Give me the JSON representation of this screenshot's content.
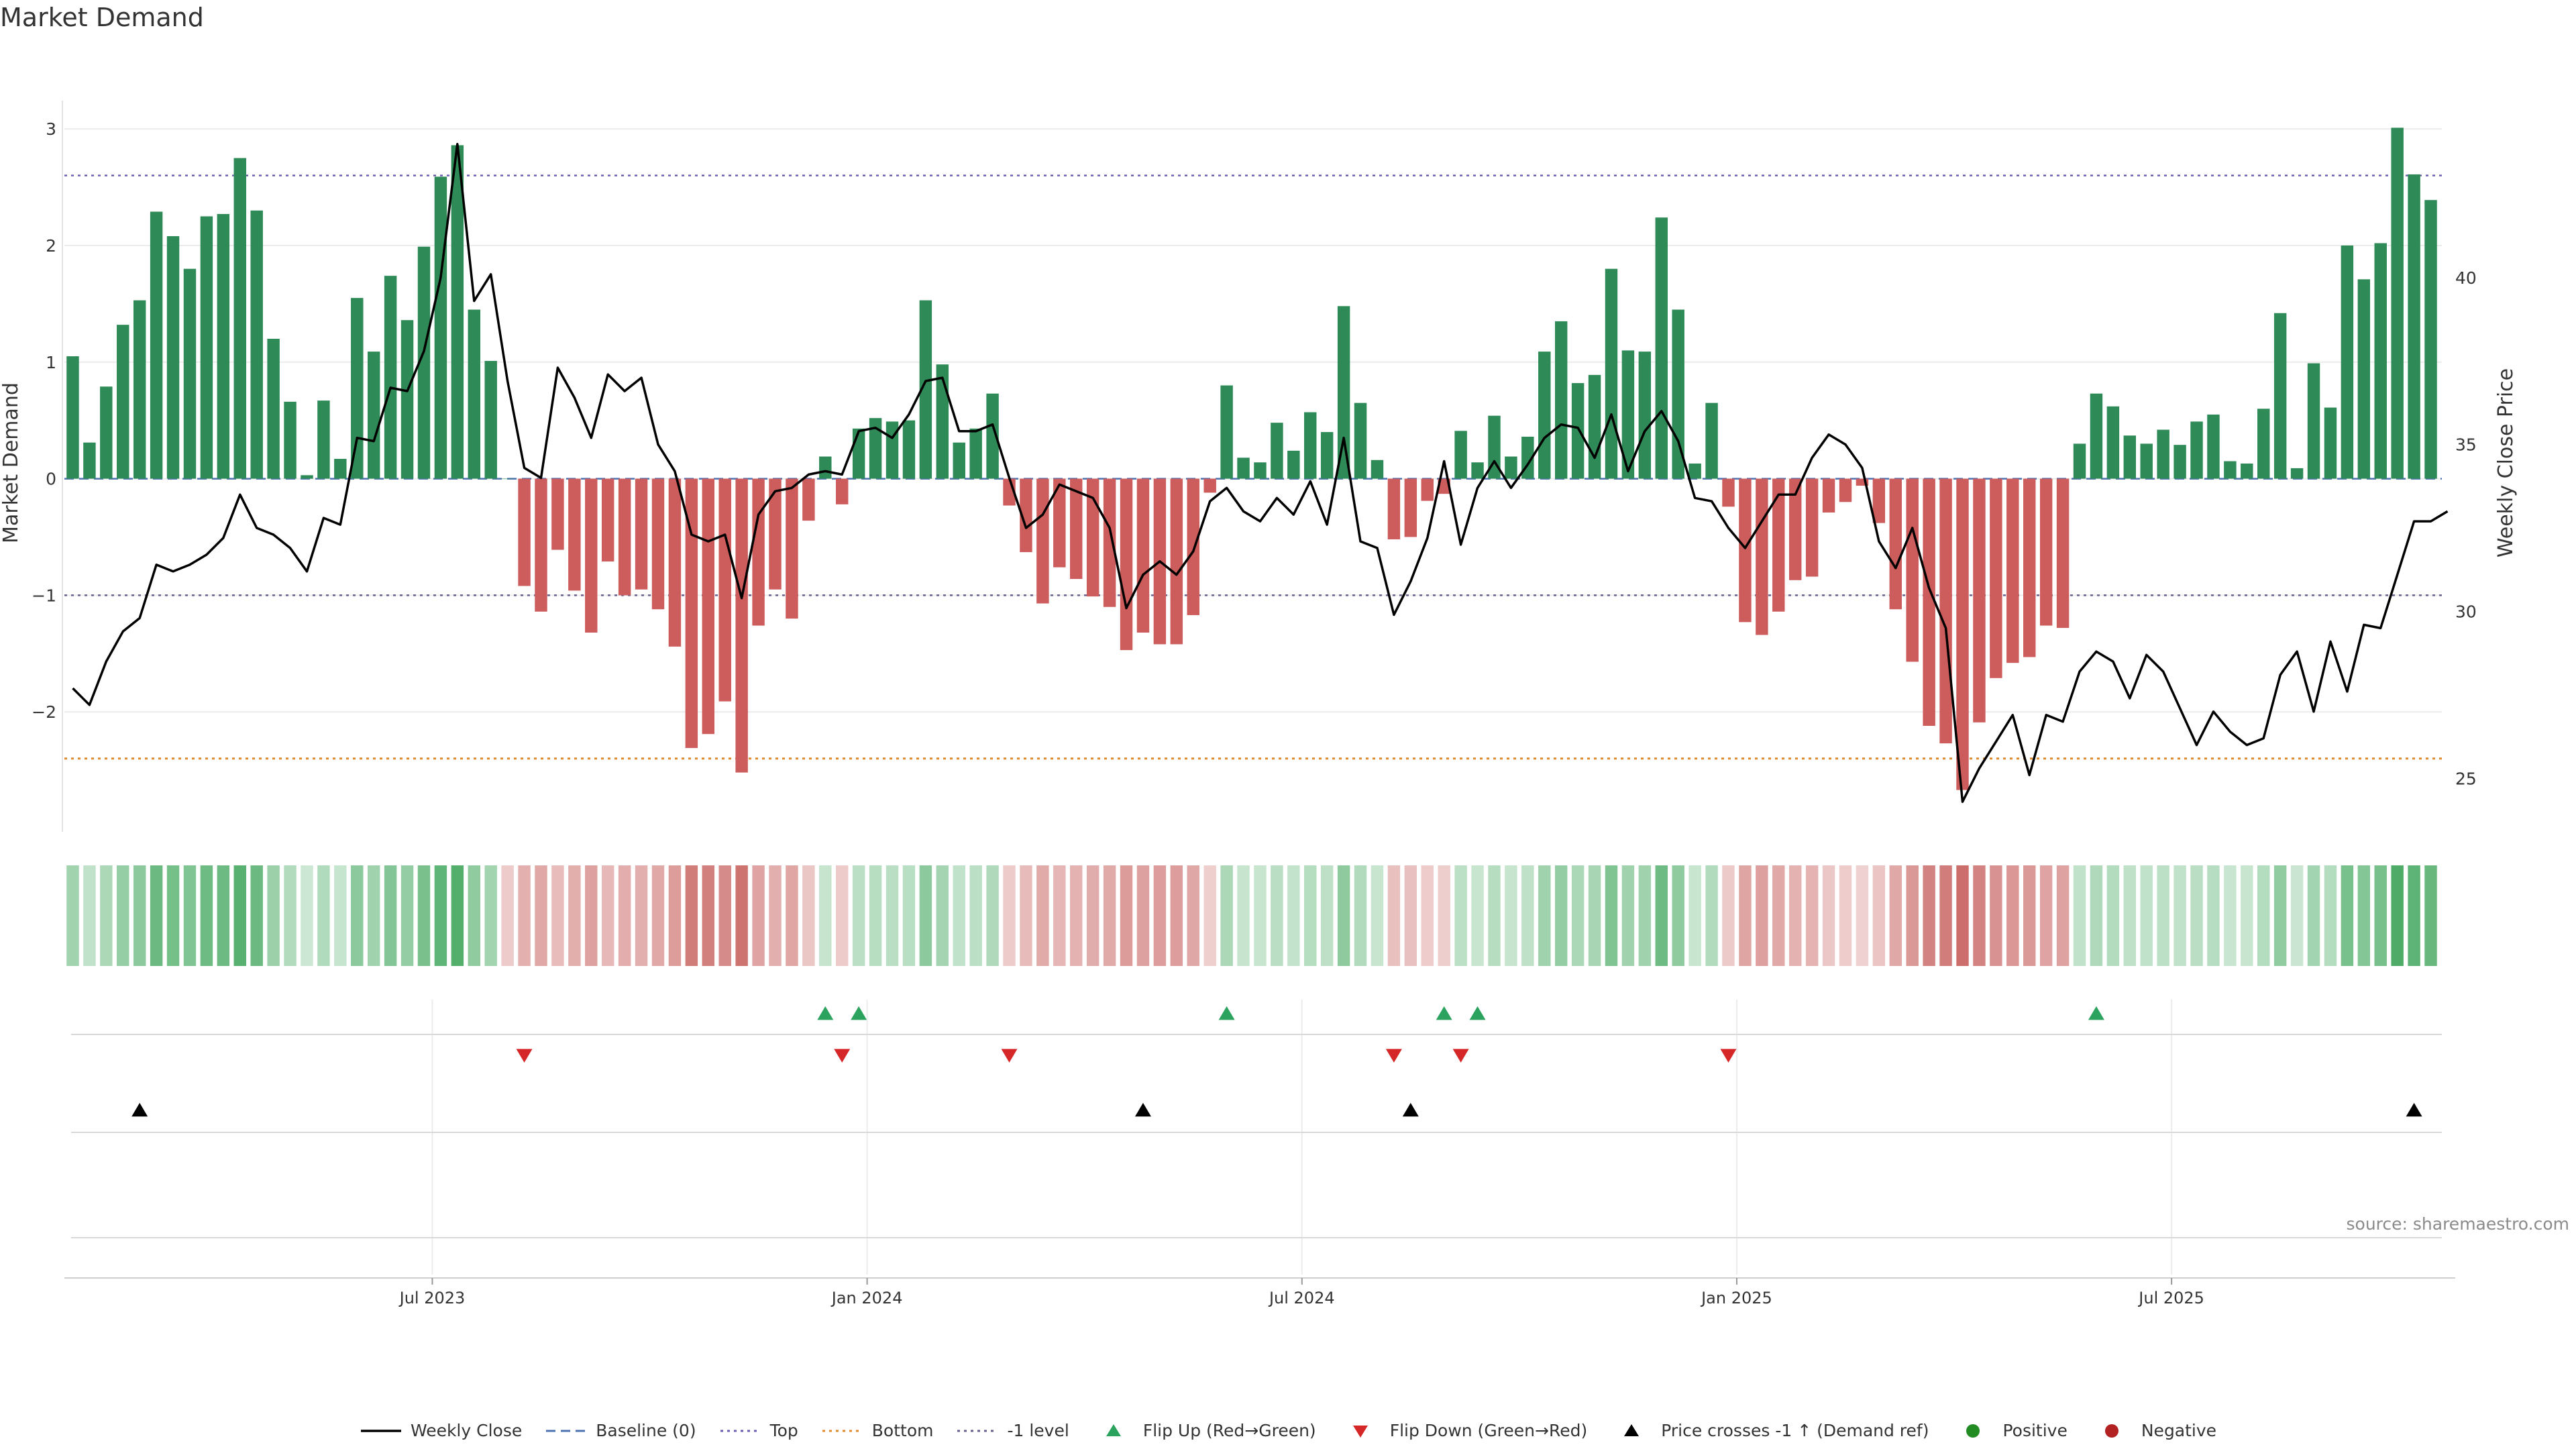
{
  "chart_data": {
    "type": "bar",
    "title": "Market Demand",
    "ylabel": "Market Demand",
    "y2label": "Weekly Close Price",
    "ylim": [
      -3.0,
      3.3
    ],
    "y2lim": [
      23.5,
      45.5
    ],
    "yticks": [
      3,
      2,
      1,
      0,
      -1,
      -2
    ],
    "ytick_labels": [
      "3",
      "2",
      "1",
      "0",
      "−1",
      "−2"
    ],
    "y2ticks": [
      40,
      35,
      30,
      25
    ],
    "y2tick_labels": [
      "40",
      "35",
      "30",
      "25"
    ],
    "xticks": [
      22,
      48,
      74,
      100,
      126
    ],
    "xtick_labels": [
      "Jul 2023",
      "Jan 2024",
      "Jul 2024",
      "Jan 2025",
      "Jul 2025"
    ],
    "reference_lines": {
      "top": 2.6,
      "bottom": -2.4,
      "minus_one": -1.0,
      "baseline": 0
    },
    "series": [
      {
        "name": "Market Demand",
        "values": [
          1.05,
          0.31,
          0.79,
          1.32,
          1.53,
          2.29,
          2.08,
          1.8,
          2.25,
          2.27,
          2.75,
          2.3,
          1.2,
          0.66,
          0.03,
          0.67,
          0.17,
          1.55,
          1.09,
          1.74,
          1.36,
          1.99,
          2.59,
          2.86,
          1.45,
          1.01,
          0,
          -0.92,
          -1.14,
          -0.61,
          -0.96,
          -1.32,
          -0.71,
          -1.0,
          -0.95,
          -1.12,
          -1.44,
          -2.31,
          -2.19,
          -1.91,
          -2.52,
          -1.26,
          -0.95,
          -1.2,
          -0.36,
          0.19,
          -0.22,
          0.43,
          0.52,
          0.49,
          0.5,
          1.53,
          0.98,
          0.31,
          0.43,
          0.73,
          -0.23,
          -0.63,
          -1.07,
          -0.76,
          -0.86,
          -1.01,
          -1.1,
          -1.47,
          -1.32,
          -1.42,
          -1.42,
          -1.17,
          -0.12,
          0.8,
          0.18,
          0.14,
          0.48,
          0.24,
          0.57,
          0.4,
          1.48,
          0.65,
          0.16,
          -0.52,
          -0.5,
          -0.19,
          -0.13,
          0.41,
          0.14,
          0.54,
          0.19,
          0.36,
          1.09,
          1.35,
          0.82,
          0.89,
          1.8,
          1.1,
          1.09,
          2.24,
          1.45,
          0.13,
          0.65,
          -0.24,
          -1.23,
          -1.34,
          -1.14,
          -0.87,
          -0.84,
          -0.29,
          -0.2,
          -0.06,
          -0.38,
          -1.12,
          -1.57,
          -2.12,
          -2.27,
          -2.67,
          -2.09,
          -1.71,
          -1.58,
          -1.53,
          -1.26,
          -1.28,
          0.3,
          0.73,
          0.62,
          0.37,
          0.3,
          0.42,
          0.29,
          0.49,
          0.55,
          0.15,
          0.13,
          0.6,
          1.42,
          0.09,
          0.99,
          0.61,
          2.0,
          1.71,
          2.02,
          3.01,
          2.61,
          2.39
        ]
      },
      {
        "name": "Weekly Close",
        "values": [
          27.7,
          27.2,
          28.5,
          29.4,
          29.8,
          31.4,
          31.2,
          31.4,
          31.7,
          32.2,
          33.5,
          32.5,
          32.3,
          31.9,
          31.2,
          32.8,
          32.6,
          35.2,
          35.1,
          36.7,
          36.6,
          37.8,
          40.0,
          44.0,
          39.3,
          40.1,
          36.9,
          34.3,
          34.0,
          37.3,
          36.4,
          35.2,
          37.1,
          36.6,
          37.0,
          35.0,
          34.2,
          32.3,
          32.1,
          32.3,
          30.4,
          32.9,
          33.6,
          33.7,
          34.1,
          34.2,
          34.1,
          35.4,
          35.5,
          35.2,
          35.9,
          36.9,
          37.0,
          35.4,
          35.4,
          35.6,
          34.0,
          32.5,
          32.9,
          33.8,
          33.6,
          33.4,
          32.5,
          30.1,
          31.1,
          31.5,
          31.1,
          31.8,
          33.3,
          33.7,
          33.0,
          32.7,
          33.4,
          32.9,
          33.9,
          32.6,
          35.2,
          32.1,
          31.9,
          29.9,
          30.9,
          32.2,
          34.5,
          32.0,
          33.7,
          34.5,
          33.7,
          34.4,
          35.2,
          35.6,
          35.5,
          34.6,
          35.9,
          34.2,
          35.4,
          36.0,
          35.1,
          33.4,
          33.3,
          32.5,
          31.9,
          32.7,
          33.5,
          33.5,
          34.6,
          35.3,
          35.0,
          34.3,
          32.1,
          31.3,
          32.5,
          30.7,
          29.5,
          24.3,
          25.3,
          26.1,
          26.9,
          25.1,
          26.9,
          26.7,
          28.2,
          28.8,
          28.5,
          27.4,
          28.7,
          28.2,
          27.1,
          26.0,
          27.0,
          26.4,
          26.0,
          26.2,
          28.1,
          28.8,
          27.0,
          29.1,
          27.6,
          29.6,
          29.5,
          31.1,
          32.7,
          32.7,
          33.0
        ]
      }
    ],
    "heat_strip": {
      "values": [
        1.05,
        0.31,
        0.79,
        1.32,
        1.53,
        2.29,
        2.08,
        1.8,
        2.25,
        2.27,
        2.75,
        2.3,
        1.2,
        0.66,
        0.03,
        0.67,
        0.17,
        1.55,
        1.09,
        1.74,
        1.36,
        1.99,
        2.59,
        2.86,
        1.45,
        1.01,
        0,
        -0.92,
        -1.14,
        -0.61,
        -0.96,
        -1.32,
        -0.71,
        -1.0,
        -0.95,
        -1.12,
        -1.44,
        -2.31,
        -2.19,
        -1.91,
        -2.52,
        -1.26,
        -0.95,
        -1.2,
        -0.36,
        0.19,
        -0.22,
        0.43,
        0.52,
        0.49,
        0.5,
        1.53,
        0.98,
        0.31,
        0.43,
        0.73,
        -0.23,
        -0.63,
        -1.07,
        -0.76,
        -0.86,
        -1.01,
        -1.1,
        -1.47,
        -1.32,
        -1.42,
        -1.42,
        -1.17,
        -0.12,
        0.8,
        0.18,
        0.14,
        0.48,
        0.24,
        0.57,
        0.4,
        1.48,
        0.65,
        0.16,
        -0.52,
        -0.5,
        -0.19,
        -0.13,
        0.41,
        0.14,
        0.54,
        0.19,
        0.36,
        1.09,
        1.35,
        0.82,
        0.89,
        1.8,
        1.1,
        1.09,
        2.24,
        1.45,
        0.13,
        0.65,
        -0.24,
        -1.23,
        -1.34,
        -1.14,
        -0.87,
        -0.84,
        -0.29,
        -0.2,
        -0.06,
        -0.38,
        -1.12,
        -1.57,
        -2.12,
        -2.27,
        -2.67,
        -2.09,
        -1.71,
        -1.58,
        -1.53,
        -1.26,
        -1.28,
        0.3,
        0.73,
        0.62,
        0.37,
        0.3,
        0.42,
        0.29,
        0.49,
        0.55,
        0.15,
        0.13,
        0.6,
        1.42,
        0.09,
        0.99,
        0.61,
        2.0,
        1.71,
        2.02,
        3.01,
        2.61,
        2.39
      ]
    },
    "flip_up_weeks": [
      45,
      47,
      69,
      82,
      84,
      121
    ],
    "flip_down_weeks": [
      27,
      46,
      56,
      79,
      83,
      99
    ],
    "price_cross_weeks": [
      4,
      64,
      80,
      140
    ],
    "legend": [
      {
        "label": "Weekly Close",
        "symbol": "line",
        "color": "#000000"
      },
      {
        "label": "Baseline (0)",
        "symbol": "dash",
        "color": "#4c72b0"
      },
      {
        "label": "Top",
        "symbol": "dot",
        "color": "#6a5fb0"
      },
      {
        "label": "Bottom",
        "symbol": "dot",
        "color": "#e08a2e"
      },
      {
        "label": "-1 level",
        "symbol": "dot",
        "color": "#6a5f8c"
      },
      {
        "label": "Flip Up (Red→Green)",
        "symbol": "up",
        "color": "#2ca25f"
      },
      {
        "label": "Flip Down (Green→Red)",
        "symbol": "down",
        "color": "#d62728"
      },
      {
        "label": "Price crosses -1 ↑ (Demand ref)",
        "symbol": "up",
        "color": "#000000"
      },
      {
        "label": "Positive",
        "symbol": "circle",
        "color": "#228b22"
      },
      {
        "label": "Negative",
        "symbol": "circle",
        "color": "#b22222"
      }
    ],
    "colors": {
      "positive": "#2e8b57",
      "negative": "#cd5c5c",
      "line": "#000000",
      "top": "#6a5fb0",
      "bottom": "#e08a2e",
      "minus_one": "#6a5f8c",
      "baseline": "#4c72b0"
    }
  },
  "source": "source: sharemaestro.com"
}
